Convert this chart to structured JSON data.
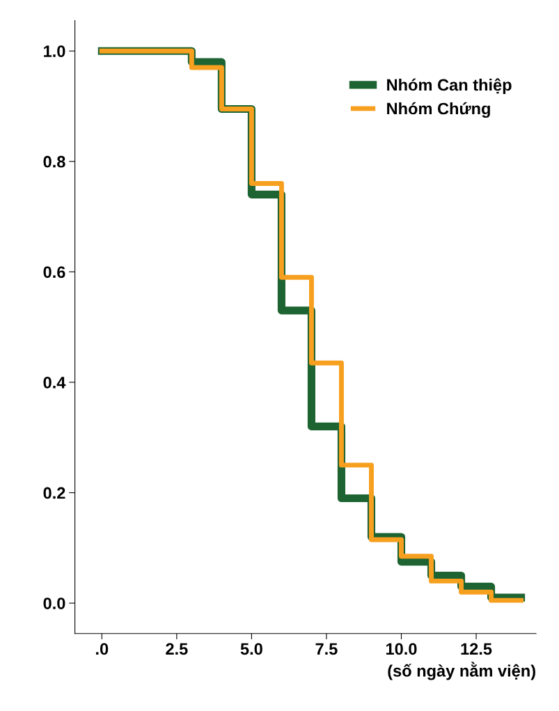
{
  "chart_data": {
    "type": "step",
    "xlabel": "(số ngày nằm viện)",
    "x": [
      0,
      3,
      4,
      5,
      6,
      7,
      8,
      9,
      10,
      11,
      12,
      13,
      14
    ],
    "series": [
      {
        "name": "Nhóm Can thiệp",
        "color": "#1e6432",
        "values": [
          1.0,
          0.98,
          0.895,
          0.74,
          0.53,
          0.32,
          0.19,
          0.12,
          0.075,
          0.05,
          0.03,
          0.01,
          0.01
        ]
      },
      {
        "name": "Nhóm Chứng",
        "color": "#f7a020",
        "values": [
          1.0,
          0.97,
          0.895,
          0.76,
          0.59,
          0.435,
          0.25,
          0.115,
          0.085,
          0.04,
          0.02,
          0.005,
          0.005
        ]
      }
    ],
    "xlim": [
      -0.9,
      14.5
    ],
    "ylim": [
      -0.055,
      1.055
    ],
    "xticks": [
      {
        "value": 0,
        "label": ".0"
      },
      {
        "value": 2.5,
        "label": "2.5"
      },
      {
        "value": 5,
        "label": "5.0"
      },
      {
        "value": 7.5,
        "label": "7.5"
      },
      {
        "value": 10,
        "label": "10.0"
      },
      {
        "value": 12.5,
        "label": "12.5"
      }
    ],
    "yticks": [
      {
        "value": 0,
        "label": "0.0"
      },
      {
        "value": 0.2,
        "label": "0.2"
      },
      {
        "value": 0.4,
        "label": "0.4"
      },
      {
        "value": 0.6,
        "label": "0.6"
      },
      {
        "value": 0.8,
        "label": "0.8"
      },
      {
        "value": 1.0,
        "label": "1.0"
      }
    ],
    "legend": "top right",
    "grid": false
  }
}
